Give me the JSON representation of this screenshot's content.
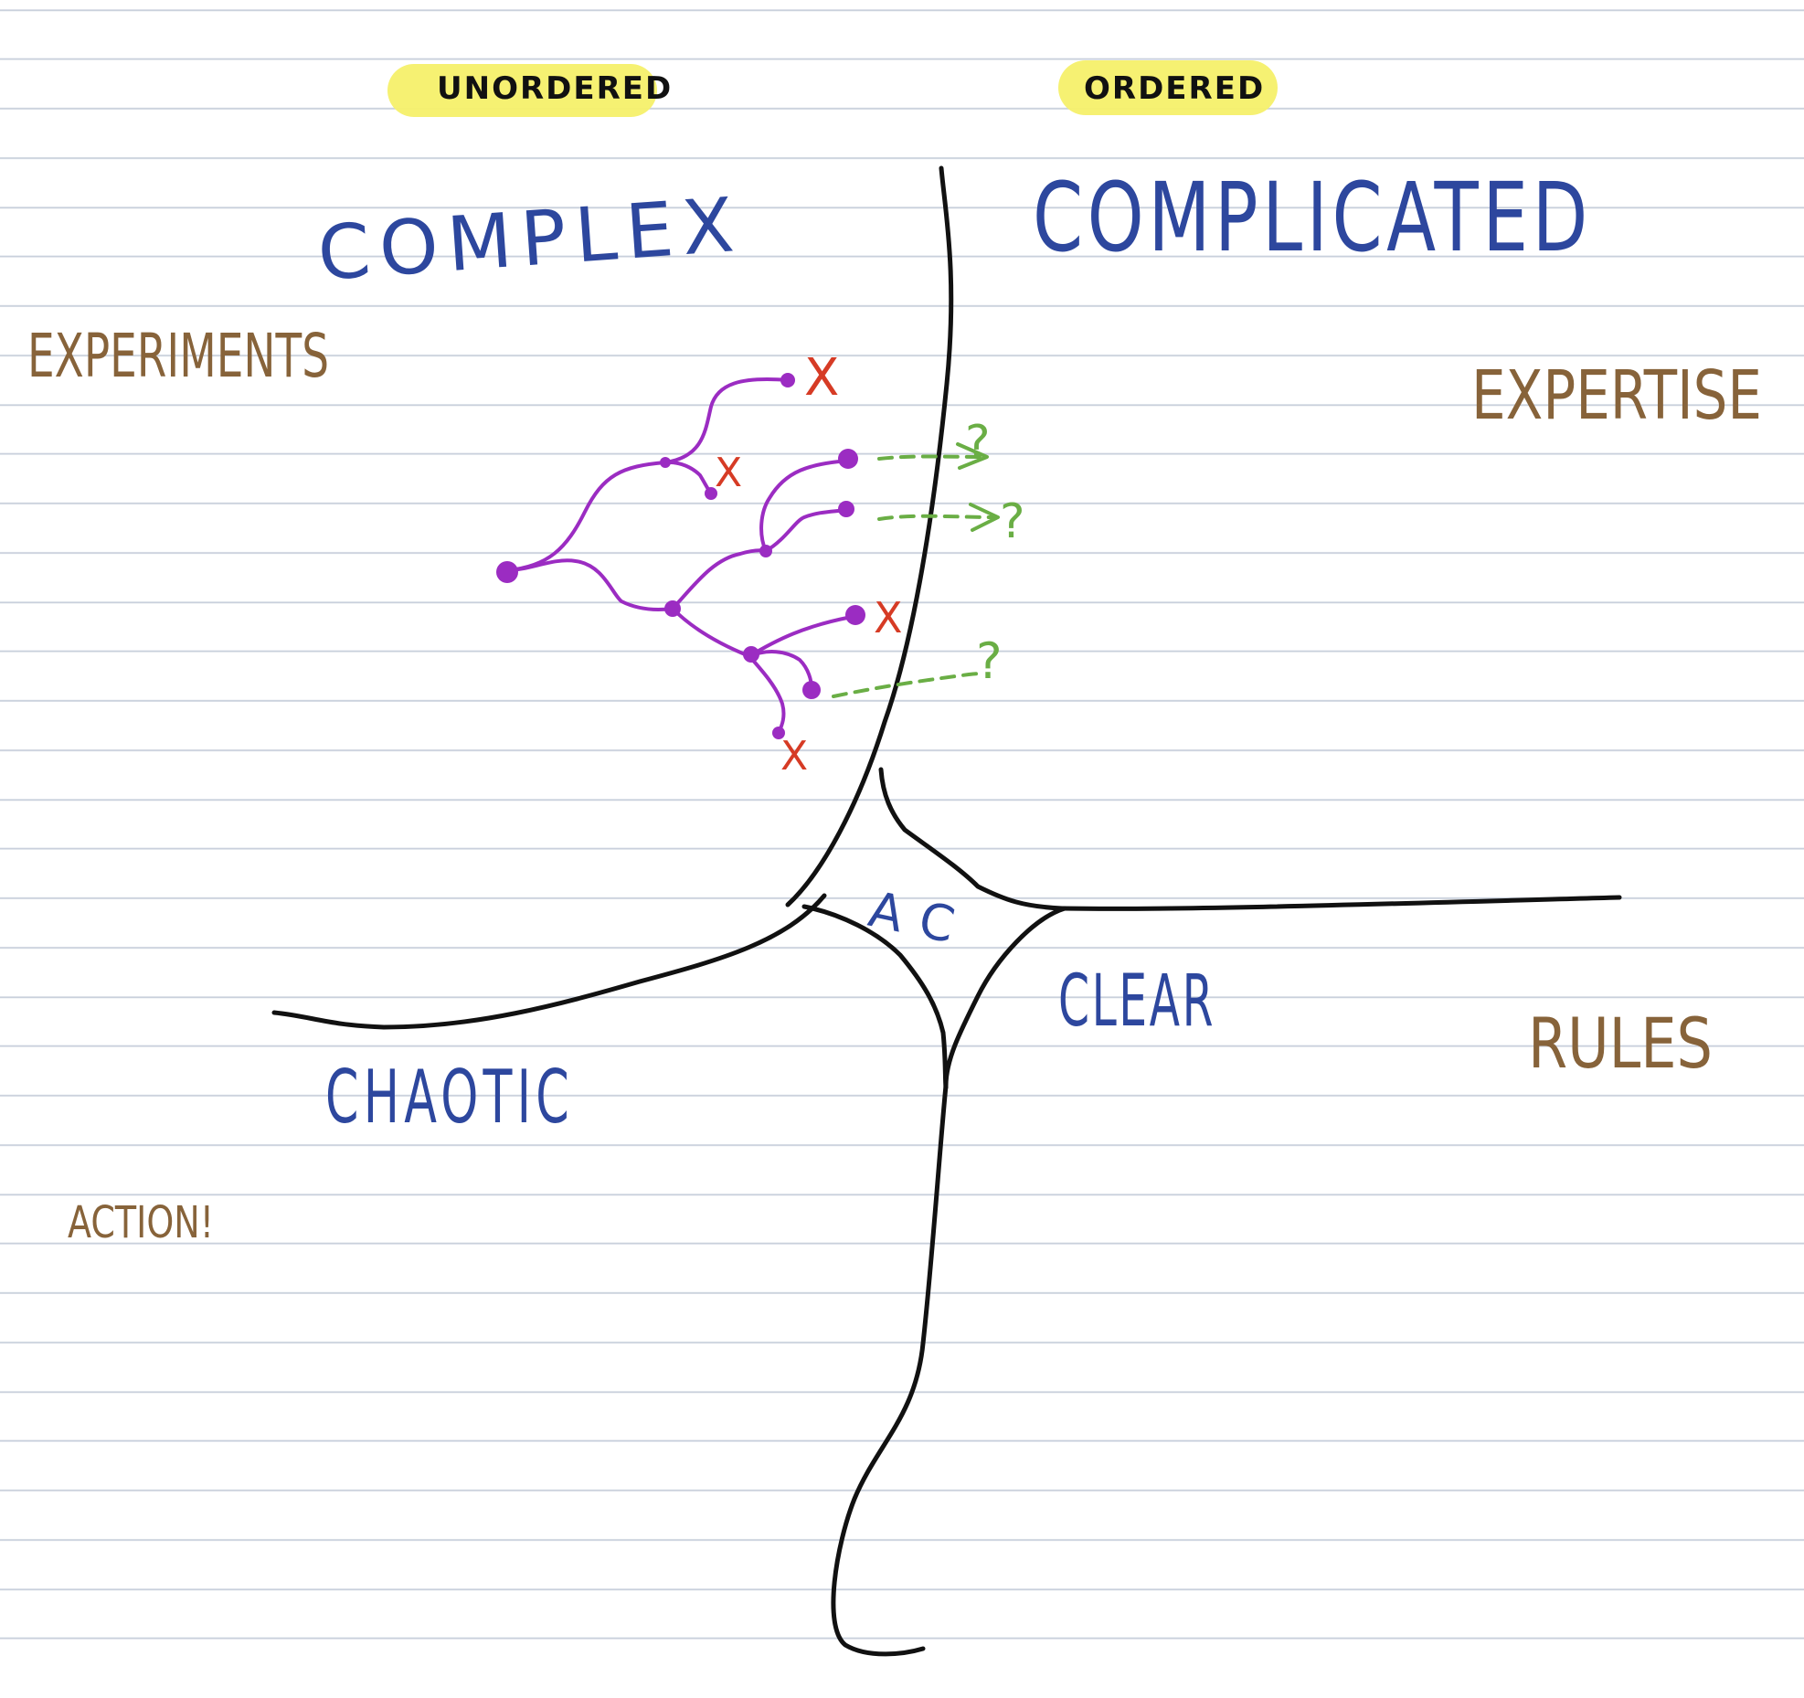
{
  "colors": {
    "domain_label": "#2d479e",
    "action_label": "#87633a",
    "highlight": "#f6f06a",
    "axis": "#111111",
    "experiment_path": "#9b2cc2",
    "failed_mark": "#d63b25",
    "unknown_outcome": "#6aae45"
  },
  "headers": {
    "unordered": "UNORDERED",
    "ordered": "ORDERED"
  },
  "domains": {
    "complex": "COMPLEX",
    "complicated": "COMPLICATED",
    "chaotic": "CHAOTIC",
    "clear": "CLEAR",
    "center": "AC"
  },
  "actions": {
    "complex": "EXPERIMENTS",
    "complicated": "EXPERTISE",
    "clear": "RULES",
    "chaotic": "ACTION!"
  },
  "markers": {
    "failed": "X",
    "unknown": "?"
  }
}
